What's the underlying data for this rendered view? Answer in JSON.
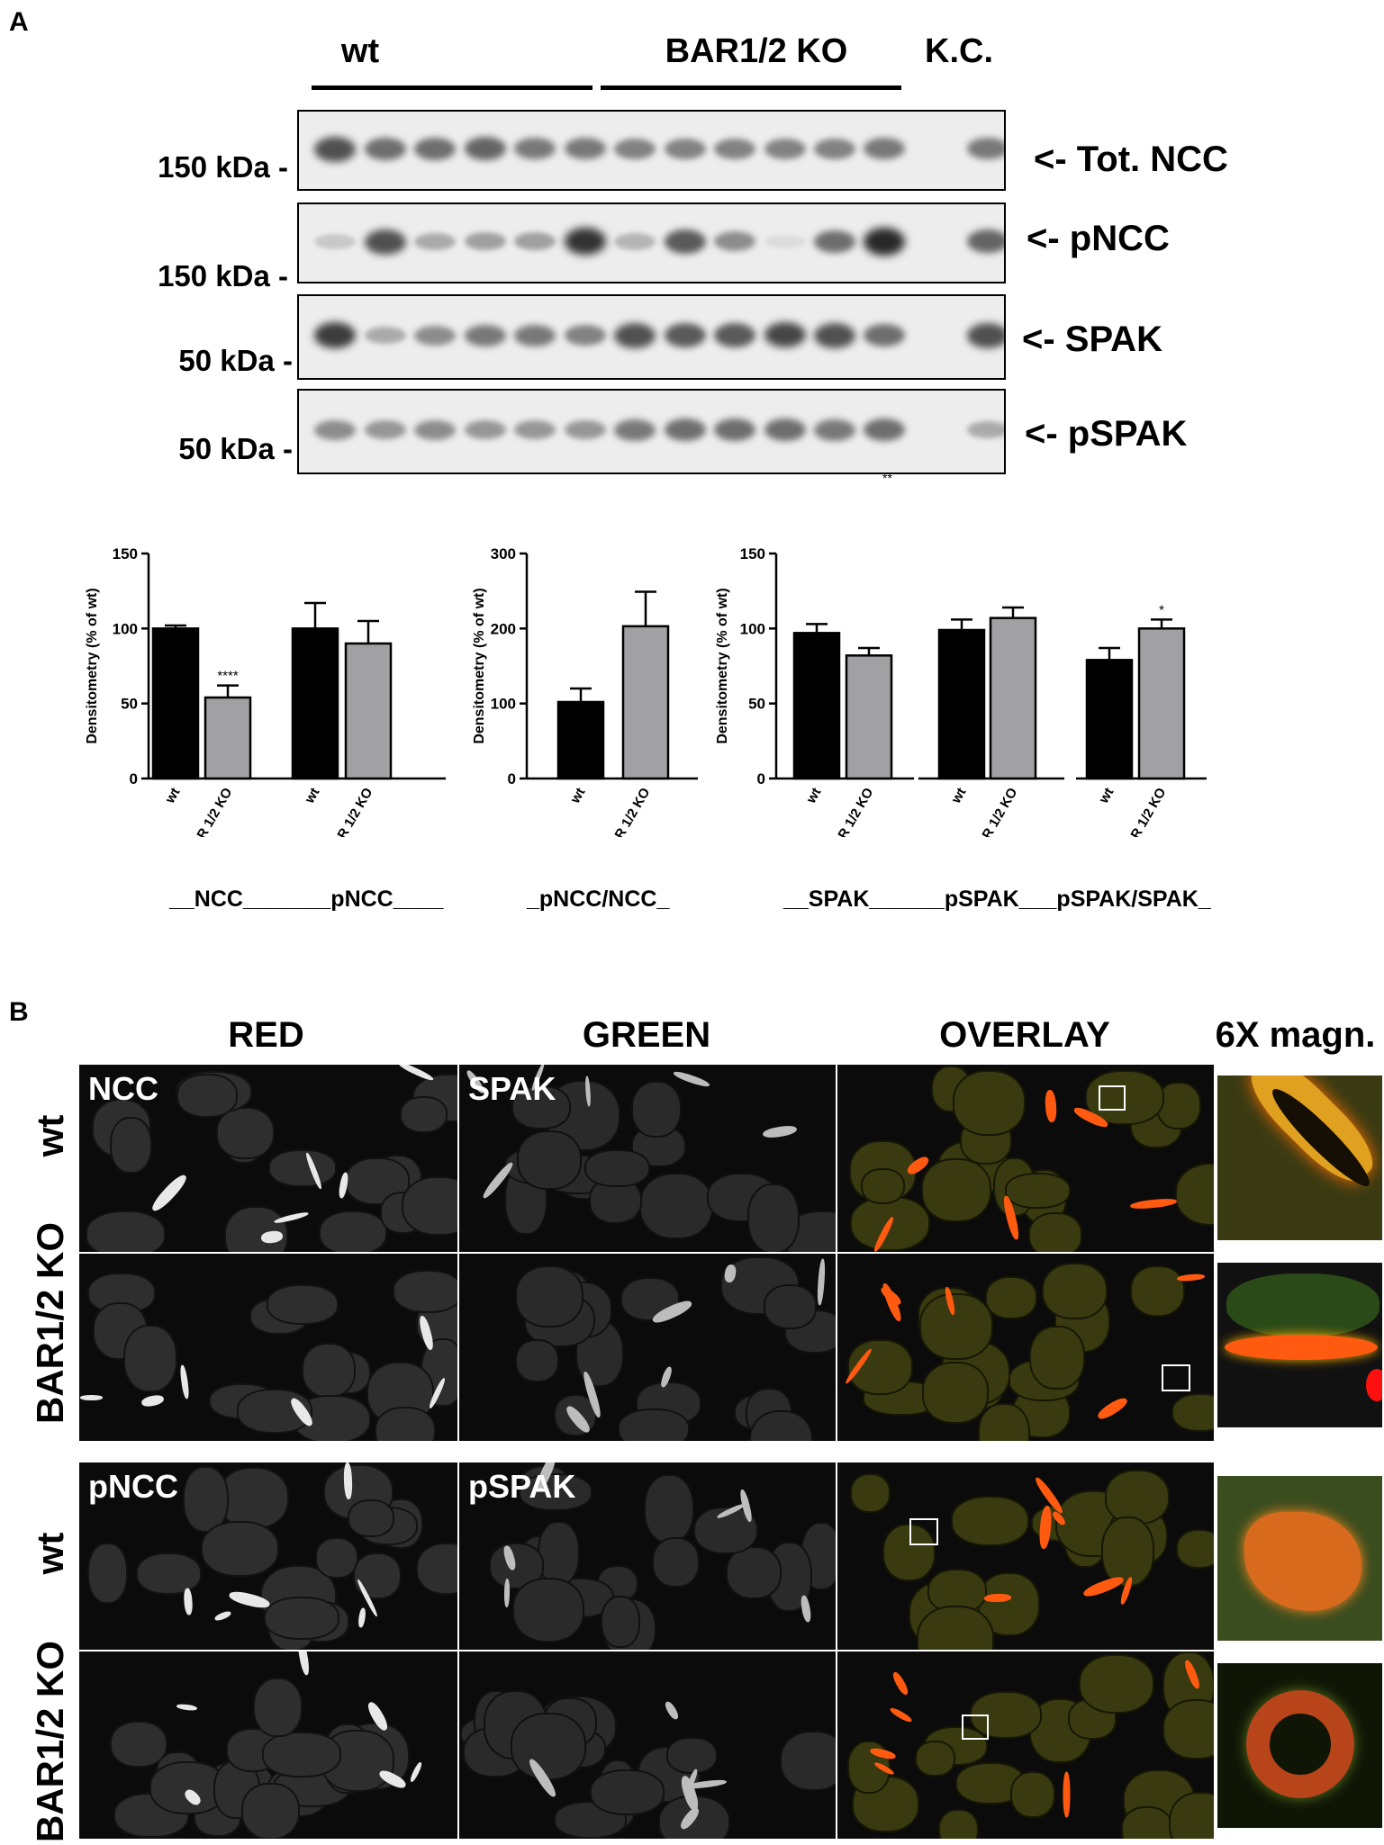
{
  "panel_a": {
    "label": "A",
    "groups": {
      "wt": "wt",
      "ko": "BAR1/2 KO",
      "kc": "K.C."
    },
    "blots": [
      {
        "name": "Tot. NCC",
        "arrow": "<- Tot. NCC",
        "kda": "150 kDa -",
        "intensities": [
          0.75,
          0.6,
          0.6,
          0.65,
          0.55,
          0.55,
          0.5,
          0.5,
          0.5,
          0.5,
          0.5,
          0.55,
          0.55
        ]
      },
      {
        "name": "pNCC",
        "arrow": "<- pNCC",
        "kda": "150 kDa -",
        "intensities": [
          0.15,
          0.75,
          0.3,
          0.35,
          0.35,
          0.9,
          0.25,
          0.7,
          0.45,
          0.05,
          0.6,
          0.95,
          0.65
        ]
      },
      {
        "name": "SPAK",
        "arrow": "<- SPAK",
        "kda": "50 kDa -",
        "intensities": [
          0.85,
          0.3,
          0.45,
          0.55,
          0.55,
          0.5,
          0.75,
          0.7,
          0.7,
          0.8,
          0.75,
          0.6,
          0.75
        ]
      },
      {
        "name": "pSPAK",
        "arrow": "<- pSPAK",
        "kda": "50 kDa -",
        "intensities": [
          0.45,
          0.4,
          0.45,
          0.4,
          0.4,
          0.4,
          0.55,
          0.6,
          0.6,
          0.6,
          0.55,
          0.6,
          0.3
        ]
      }
    ],
    "blot_note": "**"
  },
  "chart_data": [
    {
      "type": "bar",
      "ylabel": "Densitometry (% of wt)",
      "ylim": [
        0,
        150
      ],
      "yticks": [
        0,
        50,
        100,
        150
      ],
      "categories": [
        "wt",
        "BAR 1/2 KO",
        "wt",
        "BAR 1/2 KO"
      ],
      "values": [
        100,
        54,
        100,
        90
      ],
      "errors": [
        2,
        8,
        17,
        15
      ],
      "colors": [
        "#000000",
        "#a1a1a4",
        "#000000",
        "#a1a1a4"
      ],
      "significance": [
        "",
        "****",
        "",
        ""
      ],
      "group_label": "__NCC_______pNCC____"
    },
    {
      "type": "bar",
      "ylabel": "Densitometry (% of wt)",
      "ylim": [
        0,
        300
      ],
      "yticks": [
        0,
        100,
        200,
        300
      ],
      "categories": [
        "wt",
        "BAR 1/2 KO"
      ],
      "values": [
        102,
        203
      ],
      "errors": [
        18,
        46
      ],
      "colors": [
        "#000000",
        "#a1a1a4"
      ],
      "significance": [
        "",
        ""
      ],
      "group_label": "_pNCC/NCC_"
    },
    {
      "type": "bar",
      "ylabel": "Densitometry (% of wt)",
      "ylim": [
        0,
        150
      ],
      "yticks": [
        0,
        50,
        100,
        150
      ],
      "categories": [
        "wt",
        "BAR 1/2 KO",
        "wt",
        "BAR 1/2 KO",
        "wt",
        "BAR 1/2 KO"
      ],
      "values": [
        97,
        82,
        99,
        107,
        79,
        100
      ],
      "errors": [
        6,
        5,
        7,
        7,
        8,
        6
      ],
      "colors": [
        "#000000",
        "#a1a1a4",
        "#000000",
        "#a1a1a4",
        "#000000",
        "#a1a1a4"
      ],
      "significance": [
        "",
        "",
        "",
        "",
        "",
        "*"
      ],
      "group_label": "__SPAK______pSPAK___pSPAK/SPAK_"
    }
  ],
  "panel_b": {
    "label": "B",
    "columns": {
      "red": "RED",
      "green": "GREEN",
      "overlay": "OVERLAY",
      "mag": "6X magn."
    },
    "rows": {
      "wt": "wt",
      "ko": "BAR1/2 KO"
    },
    "top_labels": {
      "red": "NCC",
      "green": "SPAK"
    },
    "bottom_labels": {
      "red": "pNCC",
      "green": "pSPAK"
    }
  }
}
